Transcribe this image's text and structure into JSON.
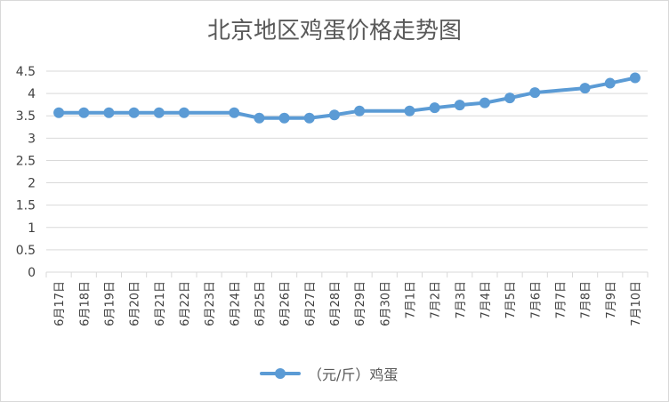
{
  "chart_data": {
    "type": "line",
    "title": "北京地区鸡蛋价格走势图",
    "categories": [
      "6月17日",
      "6月18日",
      "6月19日",
      "6月20日",
      "6月21日",
      "6月22日",
      "6月23日",
      "6月24日",
      "6月25日",
      "6月26日",
      "6月27日",
      "6月28日",
      "6月29日",
      "6月30日",
      "7月1日",
      "7月2日",
      "7月3日",
      "7月4日",
      "7月5日",
      "7月6日",
      "7月7日",
      "7月8日",
      "7月9日",
      "7月10日"
    ],
    "series": [
      {
        "name": "（元/斤）鸡蛋",
        "values": [
          3.57,
          3.57,
          3.57,
          3.57,
          3.57,
          3.57,
          null,
          3.57,
          3.45,
          3.45,
          3.45,
          3.52,
          3.61,
          null,
          3.61,
          3.68,
          3.74,
          3.79,
          3.9,
          4.02,
          null,
          4.12,
          4.23,
          4.35
        ],
        "color": "#5b9bd5"
      }
    ],
    "ylim": [
      0,
      4.5
    ],
    "yticks": [
      "0",
      "0.5",
      "1",
      "1.5",
      "2",
      "2.5",
      "3",
      "3.5",
      "4",
      "4.5"
    ],
    "grid": true,
    "legend": "bottom"
  }
}
